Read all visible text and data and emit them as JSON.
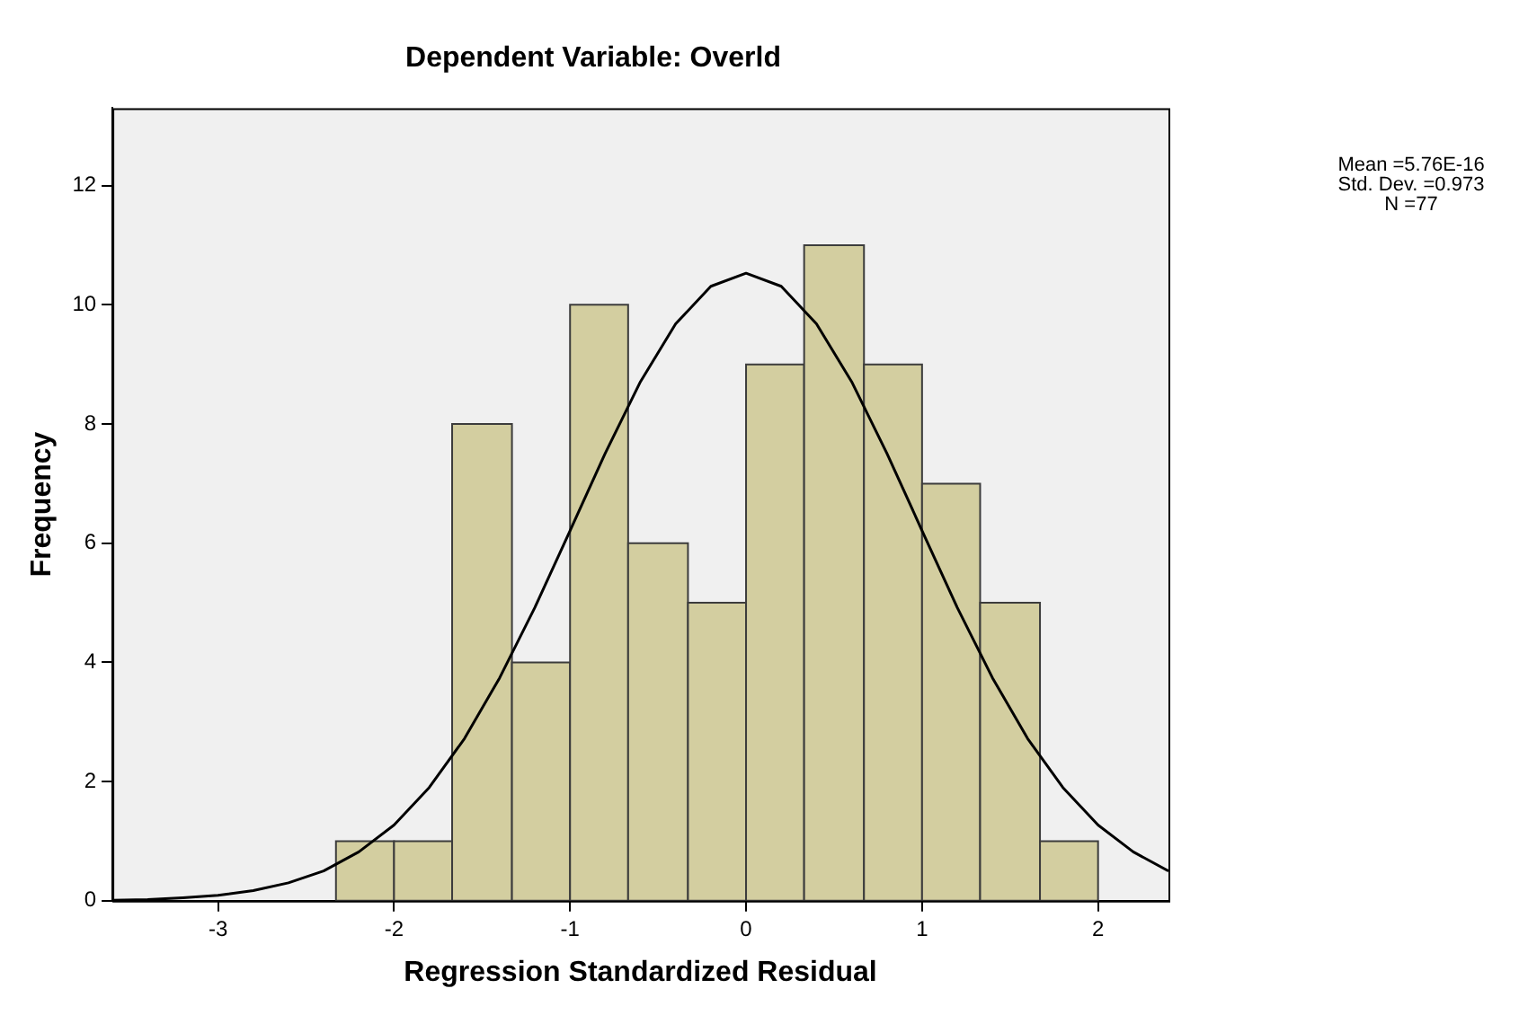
{
  "chart_data": {
    "type": "histogram",
    "title": "Dependent Variable: Overld",
    "xlabel": "Regression Standardized Residual",
    "ylabel": "Frequency",
    "bins": [
      -2.33,
      -2.0,
      -1.67,
      -1.33,
      -1.0,
      -0.67,
      -0.33,
      0,
      0.33,
      0.67,
      1.0,
      1.33,
      1.67,
      2.0
    ],
    "values": [
      1,
      1,
      8,
      4,
      10,
      6,
      5,
      9,
      11,
      9,
      7,
      5,
      1
    ],
    "color": "#d3cea0",
    "series": [
      {
        "type": "line",
        "color": "#000000",
        "x": [
          -3.6,
          -3.4,
          -3.2,
          -3.0,
          -2.8,
          -2.6,
          -2.4,
          -2.2,
          -2.0,
          -1.8,
          -1.6,
          -1.4,
          -1.2,
          -1.0,
          -0.8,
          -0.6,
          -0.4,
          -0.2,
          0,
          0.2,
          0.4,
          0.6,
          0.8,
          1.0,
          1.2,
          1.4,
          1.6,
          1.8,
          2.0,
          2.2,
          2.4
        ],
        "values": [
          0.01,
          0.02,
          0.05,
          0.09,
          0.17,
          0.3,
          0.5,
          0.82,
          1.27,
          1.9,
          2.72,
          3.74,
          4.92,
          6.21,
          7.51,
          8.71,
          9.68,
          10.31,
          10.53,
          10.31,
          9.68,
          8.71,
          7.51,
          6.21,
          4.92,
          3.74,
          2.72,
          1.9,
          1.27,
          0.82,
          0.5
        ]
      }
    ],
    "xlim": [
      -3.6,
      2.4
    ],
    "xticks": [
      -3,
      -2,
      -1,
      0,
      1,
      2
    ],
    "ylim": [
      0,
      13.3
    ],
    "yticks": [
      0,
      2,
      4,
      6,
      8,
      10,
      12
    ],
    "annotations": [
      "Mean =5.76E-16",
      "Std. Dev. =0.973",
      "N =77"
    ],
    "grid": false,
    "legend": false
  }
}
